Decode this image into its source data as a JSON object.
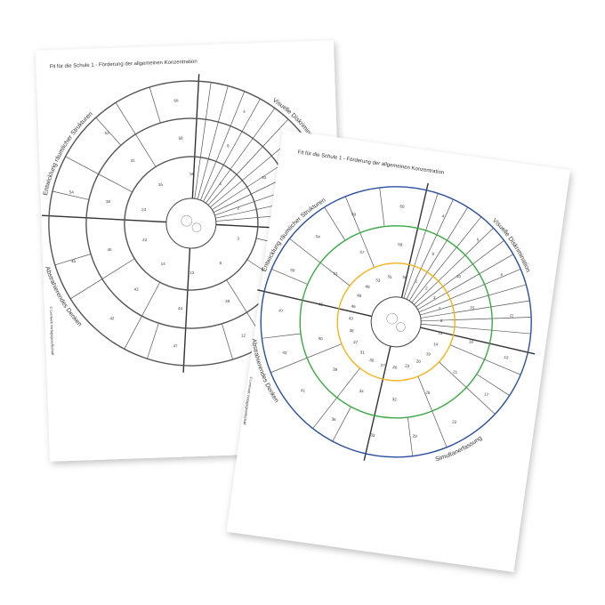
{
  "back_sheet": {
    "title": "Fit für die Schule 1 - Förderung der allgemeinen Konzentration",
    "labels": [
      "Entwicklung räumlicher Strukturen",
      "Visuelle Diskrimination",
      "Abstrahierendes Denken"
    ],
    "copyright": "© Lernwelt Verlagsgesellschaft",
    "ring_color": "#555555",
    "numbers": {
      "outer": [
        "60",
        "4",
        "5",
        "6",
        "11",
        "12",
        "47",
        "42",
        "45",
        "54",
        "53"
      ],
      "middle": [
        "58",
        "9",
        "10",
        "57",
        "52",
        "49",
        "44",
        "43",
        "40",
        "38",
        "31"
      ],
      "inner": [
        "56",
        "1",
        "2",
        "3",
        "8",
        "13",
        "14",
        "23",
        "24",
        "35"
      ]
    }
  },
  "front_sheet": {
    "title": "Fit für die Schule 1 - Förderung der allgemeinen Konzentration",
    "labels": [
      "Entwicklung räumlicher Strukturen",
      "Visuelle Diskrimination",
      "Abstrahierendes Denken",
      "Simultanerfassung"
    ],
    "copyright": "© Lernwelt Verlagsgesellschaft",
    "colors": {
      "outer": "#2b4f9e",
      "middle": "#3aa845",
      "inner": "#f2b21c",
      "lines": "#444444"
    },
    "numbers": {
      "outer": [
        "60",
        "4",
        "5",
        "6",
        "11",
        "12",
        "17",
        "22",
        "29",
        "33",
        "36",
        "41",
        "42",
        "47",
        "50",
        "54",
        "59"
      ],
      "middle": [
        "58",
        "9",
        "10",
        "15",
        "18",
        "21",
        "28",
        "32",
        "34",
        "39",
        "40",
        "45",
        "51",
        "57"
      ],
      "inner": [
        "56",
        "1",
        "2",
        "3",
        "7",
        "8",
        "13",
        "14",
        "19",
        "20",
        "23",
        "26",
        "27",
        "30",
        "31",
        "37",
        "38",
        "43",
        "46",
        "48",
        "49",
        "53",
        "55"
      ]
    }
  }
}
